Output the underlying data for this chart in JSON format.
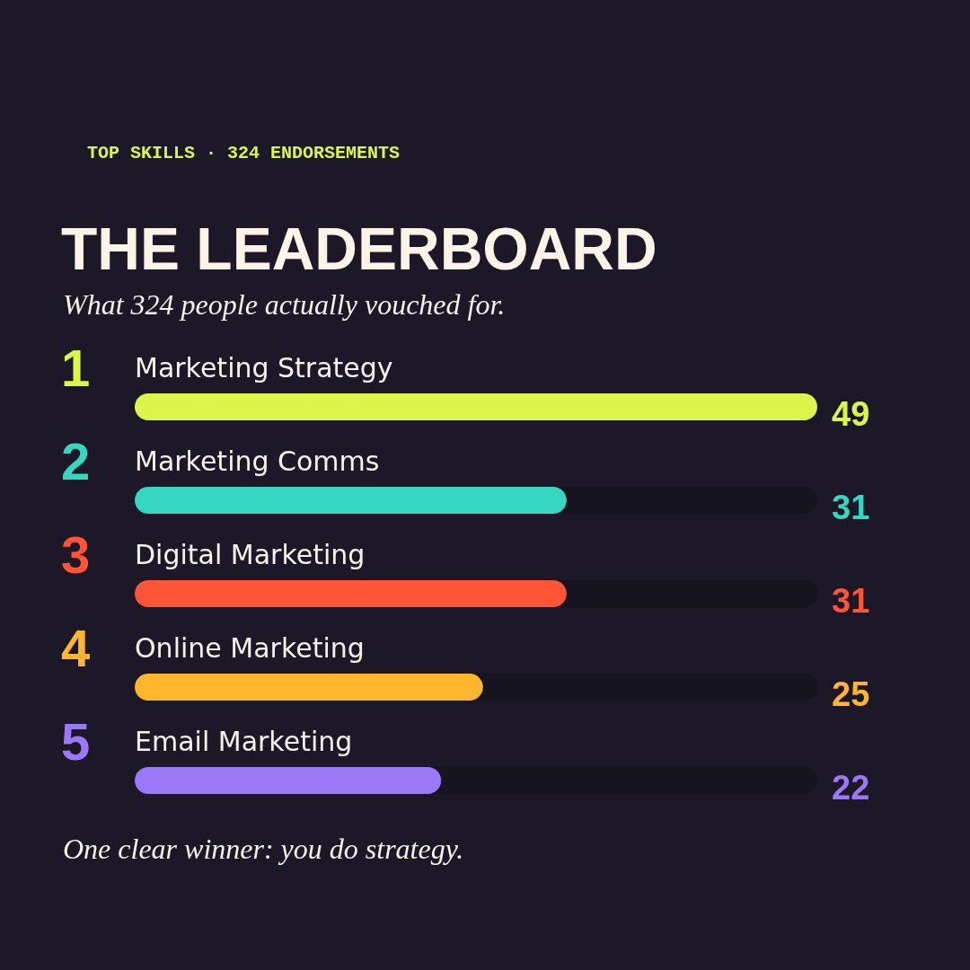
{
  "chart_data": {
    "type": "bar",
    "orientation": "horizontal",
    "title": "THE LEADERBOARD",
    "subtitle": "What 324 people actually vouched for.",
    "categories": [
      "Marketing Strategy",
      "Marketing Comms",
      "Digital Marketing",
      "Online Marketing",
      "Email Marketing"
    ],
    "values": [
      49,
      31,
      31,
      25,
      22
    ],
    "colors": [
      "#dcf54a",
      "#36d6c0",
      "#ff5536",
      "#ffb62e",
      "#9b78f7"
    ],
    "xlim": [
      0,
      49
    ],
    "data_labels": true,
    "annotations": [
      "TOP SKILLS · 324 ENDORSEMENTS",
      "1",
      "2",
      "3",
      "4",
      "5",
      "One clear winner: you do strategy."
    ]
  }
}
